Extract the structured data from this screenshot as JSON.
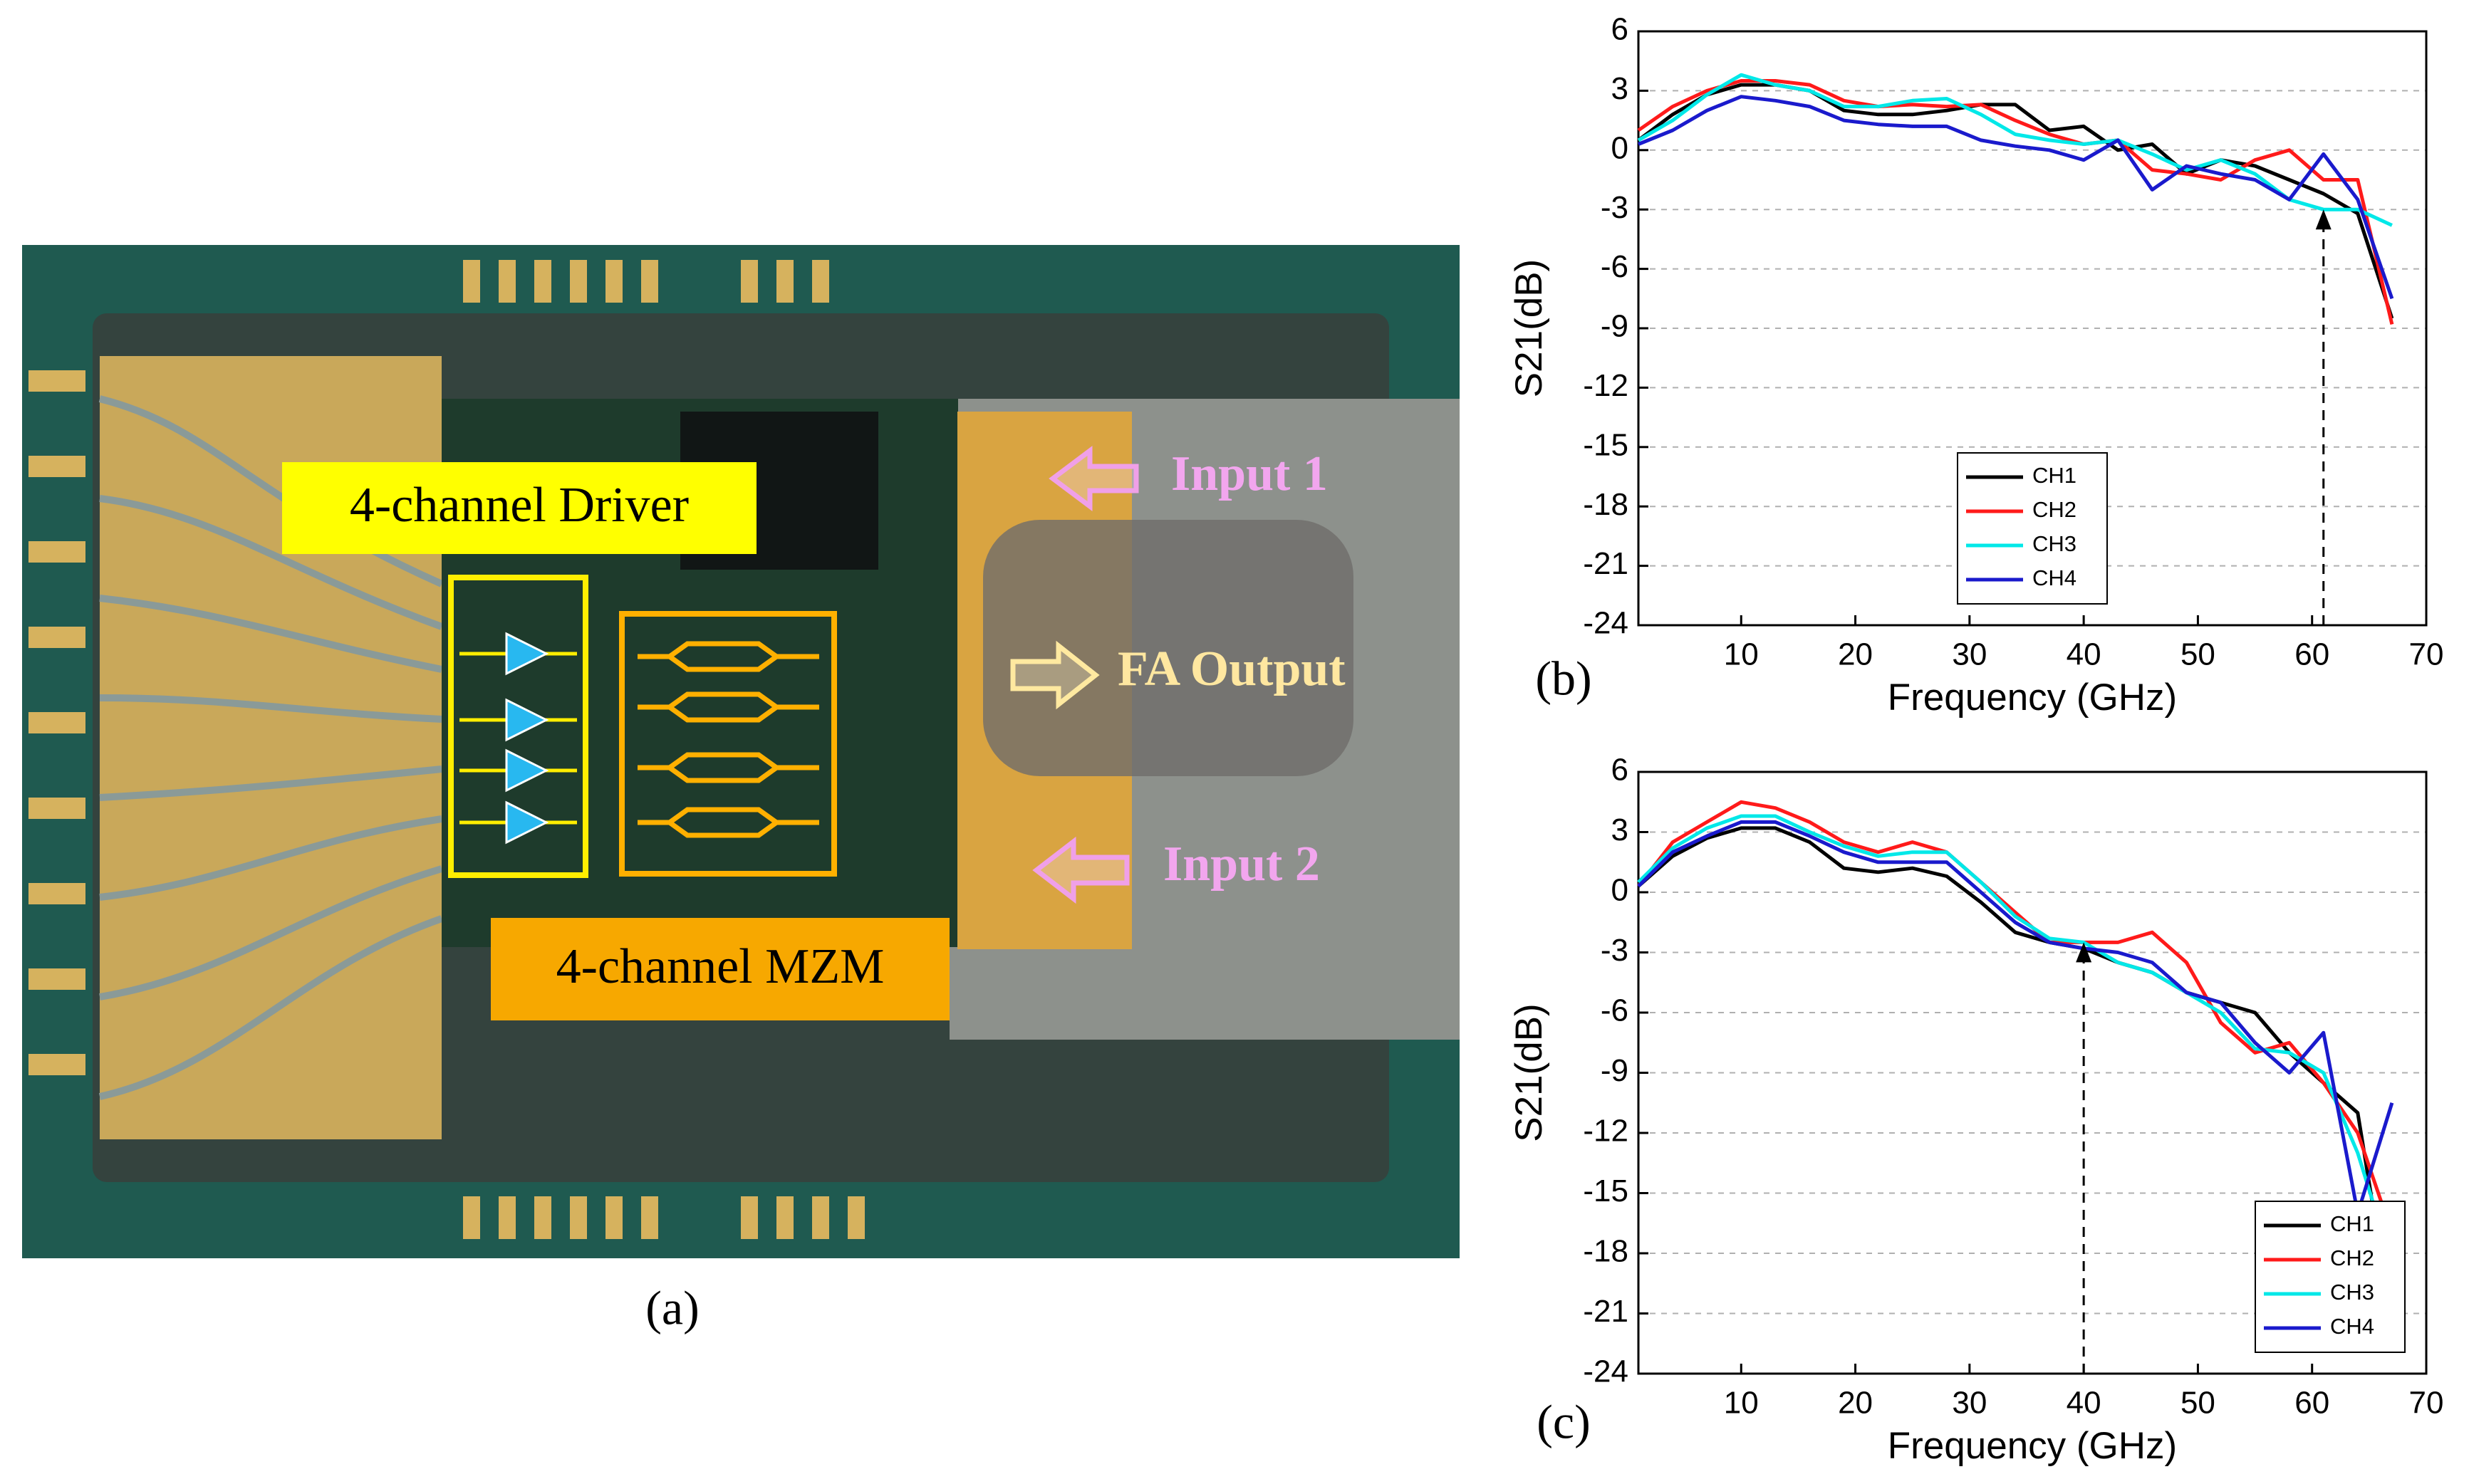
{
  "panel_a": {
    "caption": "(a)",
    "labels": {
      "driver": "4-channel Driver",
      "mzm": "4-channel MZM",
      "input1": "Input 1",
      "output": "FA Output",
      "input2": "Input 2"
    }
  },
  "chart_data": [
    {
      "type": "line",
      "panel_label": "(b)",
      "xlabel": "Frequency (GHz)",
      "ylabel": "S21(dB)",
      "x": [
        1,
        4,
        7,
        10,
        13,
        16,
        19,
        22,
        25,
        28,
        31,
        34,
        37,
        40,
        43,
        46,
        49,
        52,
        55,
        58,
        61,
        64,
        67
      ],
      "xlim": [
        1,
        70
      ],
      "xticks": [
        10,
        20,
        30,
        40,
        50,
        60,
        70
      ],
      "ylim": [
        -24,
        6
      ],
      "yticks": [
        -24,
        -21,
        -18,
        -15,
        -12,
        -9,
        -6,
        -3,
        0,
        3,
        6
      ],
      "grid": true,
      "legend": "lower center",
      "marker": {
        "x": 61,
        "y": -3
      },
      "series": [
        {
          "name": "CH1",
          "color": "#000000",
          "values": [
            0.5,
            1.8,
            2.8,
            3.3,
            3.3,
            3,
            2,
            1.8,
            1.8,
            2,
            2.3,
            2.3,
            1,
            1.2,
            0,
            0.3,
            -1.2,
            -0.5,
            -0.8,
            -1.5,
            -2.2,
            -3.2,
            -8.5
          ]
        },
        {
          "name": "CH2",
          "color": "#ff1a1a",
          "values": [
            1,
            2.2,
            3,
            3.5,
            3.5,
            3.3,
            2.5,
            2.2,
            2.3,
            2.2,
            2.3,
            1.5,
            0.8,
            0.3,
            0.5,
            -1,
            -1.2,
            -1.5,
            -0.5,
            0,
            -1.5,
            -1.5,
            -8.8
          ]
        },
        {
          "name": "CH3",
          "color": "#00e8e8",
          "values": [
            0.5,
            1.5,
            2.8,
            3.8,
            3.3,
            3,
            2.2,
            2.2,
            2.5,
            2.6,
            1.8,
            0.8,
            0.5,
            0.3,
            0.5,
            -0.2,
            -1,
            -0.5,
            -1.2,
            -2.5,
            -3,
            -3,
            -3.8
          ]
        },
        {
          "name": "CH4",
          "color": "#1a1acc",
          "values": [
            0.3,
            1,
            2,
            2.7,
            2.5,
            2.2,
            1.5,
            1.3,
            1.2,
            1.2,
            0.5,
            0.2,
            0,
            -0.5,
            0.5,
            -2,
            -0.8,
            -1.2,
            -1.5,
            -2.5,
            -0.2,
            -2.5,
            -7.5
          ]
        }
      ]
    },
    {
      "type": "line",
      "panel_label": "(c)",
      "xlabel": "Frequency (GHz)",
      "ylabel": "S21(dB)",
      "x": [
        1,
        4,
        7,
        10,
        13,
        16,
        19,
        22,
        25,
        28,
        31,
        34,
        37,
        40,
        43,
        46,
        49,
        52,
        55,
        58,
        61,
        64,
        67
      ],
      "xlim": [
        1,
        70
      ],
      "xticks": [
        10,
        20,
        30,
        40,
        50,
        60,
        70
      ],
      "ylim": [
        -24,
        6
      ],
      "yticks": [
        -24,
        -21,
        -18,
        -15,
        -12,
        -9,
        -6,
        -3,
        0,
        3,
        6
      ],
      "grid": true,
      "legend": "lower right",
      "marker": {
        "x": 40,
        "y": -2.5
      },
      "series": [
        {
          "name": "CH1",
          "color": "#000000",
          "values": [
            0.3,
            1.8,
            2.7,
            3.2,
            3.2,
            2.5,
            1.2,
            1,
            1.2,
            0.8,
            -0.5,
            -2,
            -2.5,
            -2.8,
            -3.5,
            -4,
            -5,
            -5.5,
            -6,
            -8,
            -9.5,
            -11,
            -21.5
          ]
        },
        {
          "name": "CH2",
          "color": "#ff1a1a",
          "values": [
            0.3,
            2.5,
            3.5,
            4.5,
            4.2,
            3.5,
            2.5,
            2,
            2.5,
            2,
            0.5,
            -1,
            -2.5,
            -2.5,
            -2.5,
            -2,
            -3.5,
            -6.5,
            -8,
            -7.5,
            -9.5,
            -12,
            -17
          ]
        },
        {
          "name": "CH3",
          "color": "#00e8e8",
          "values": [
            0.5,
            2.2,
            3.2,
            3.8,
            3.8,
            3,
            2.3,
            1.8,
            2,
            2,
            0.5,
            -1.2,
            -2.3,
            -2.5,
            -3.5,
            -4,
            -5,
            -6,
            -7.8,
            -8,
            -9,
            -13,
            -18.5
          ]
        },
        {
          "name": "CH4",
          "color": "#1a1acc",
          "values": [
            0.3,
            2,
            2.8,
            3.5,
            3.5,
            2.8,
            2,
            1.5,
            1.5,
            1.5,
            0,
            -1.5,
            -2.5,
            -2.8,
            -3,
            -3.5,
            -5,
            -5.5,
            -7.5,
            -9,
            -7,
            -16,
            -10.5
          ]
        }
      ]
    }
  ]
}
